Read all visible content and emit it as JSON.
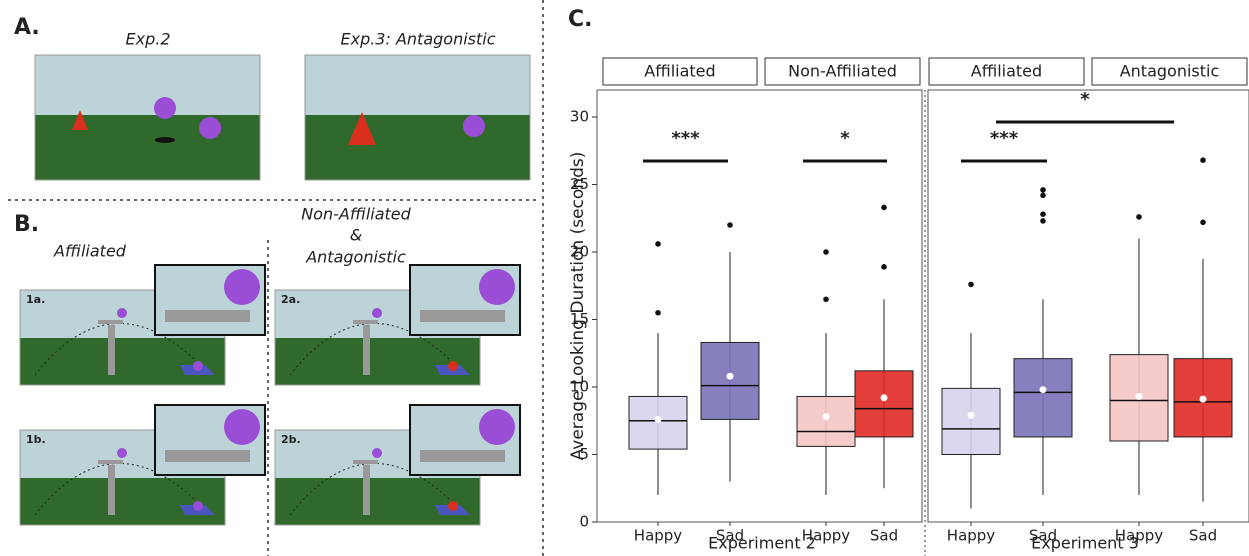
{
  "panels": {
    "a": {
      "label": "A.",
      "scenes": [
        "Exp.2",
        "Exp.3: Antagonistic"
      ]
    },
    "b": {
      "label": "B.",
      "left": "Affiliated",
      "right": [
        "Non-Affiliated",
        "&",
        "Antagonistic"
      ],
      "scenes": [
        "1a.",
        "2a.",
        "1b.",
        "2b."
      ]
    }
  },
  "chart_data": {
    "type": "box",
    "label": "C.",
    "y_label": "Average Looking Duration (seconds)",
    "ylim": [
      0,
      32
    ],
    "yticks": [
      0,
      5,
      10,
      15,
      20,
      25,
      30
    ],
    "groups": [
      "Experiment 2",
      "Experiment 3"
    ],
    "facets": [
      {
        "name": "Affiliated",
        "categories": [
          "Happy",
          "Sad"
        ],
        "colors": [
          "#d8d2ec",
          "#7a72b8"
        ],
        "low": [
          2,
          3
        ],
        "q1": [
          5.4,
          7.6
        ],
        "median": [
          7.5,
          10.1
        ],
        "q3": [
          9.3,
          13.3
        ],
        "high": [
          14,
          20
        ],
        "mean": [
          7.6,
          10.8
        ],
        "outliers": [
          [
            15.5,
            20.6
          ],
          [
            22
          ]
        ]
      },
      {
        "name": "Non-Affiliated",
        "categories": [
          "Happy",
          "Sad"
        ],
        "colors": [
          "#f5c6c4",
          "#e02a25"
        ],
        "low": [
          2,
          2.5
        ],
        "q1": [
          5.6,
          6.3
        ],
        "median": [
          6.7,
          8.4
        ],
        "q3": [
          9.3,
          11.2
        ],
        "high": [
          14,
          16.5
        ],
        "mean": [
          7.8,
          9.2
        ],
        "outliers": [
          [
            16.5,
            20
          ],
          [
            18.9,
            23.3
          ]
        ]
      },
      {
        "name": "Affiliated",
        "categories": [
          "Happy",
          "Sad"
        ],
        "colors": [
          "#d8d2ec",
          "#7a72b8"
        ],
        "low": [
          1,
          2
        ],
        "q1": [
          5,
          6.3
        ],
        "median": [
          6.9,
          9.6
        ],
        "q3": [
          9.9,
          12.1
        ],
        "high": [
          14,
          16.5
        ],
        "mean": [
          7.9,
          9.8
        ],
        "outliers": [
          [
            17.6
          ],
          [
            22.3,
            22.8,
            24.2,
            24.6
          ]
        ]
      },
      {
        "name": "Antagonistic",
        "categories": [
          "Happy",
          "Sad"
        ],
        "colors": [
          "#f5c6c4",
          "#e02a25"
        ],
        "low": [
          2,
          1.5
        ],
        "q1": [
          6,
          6.3
        ],
        "median": [
          9,
          8.9
        ],
        "q3": [
          12.4,
          12.1
        ],
        "high": [
          21,
          19.5
        ],
        "mean": [
          9.3,
          9.1
        ],
        "outliers": [
          [
            22.6
          ],
          [
            22.2,
            26.8
          ]
        ]
      }
    ],
    "annotations": [
      "***",
      "*",
      "***",
      "*"
    ]
  }
}
